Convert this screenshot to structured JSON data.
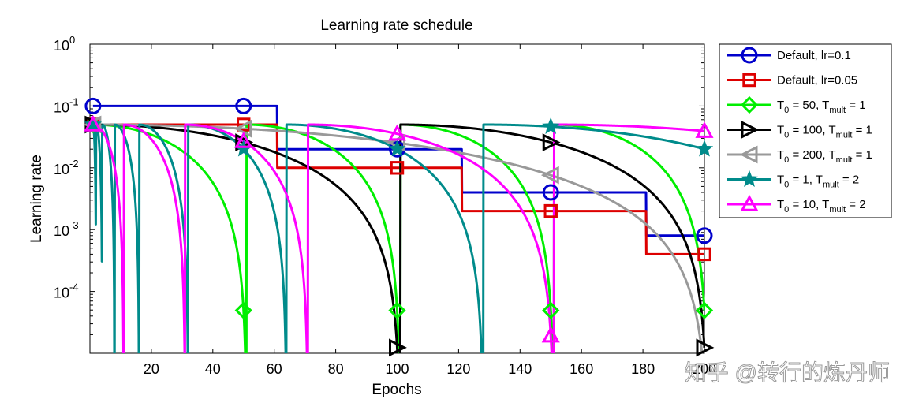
{
  "chart_data": {
    "type": "line",
    "title": "Learning rate schedule",
    "xlabel": "Epochs",
    "ylabel": "Learning rate",
    "xlim": [
      0,
      200
    ],
    "ylim": [
      1e-05,
      1
    ],
    "yscale": "log",
    "x_ticks": [
      20,
      40,
      60,
      80,
      100,
      120,
      140,
      160,
      180,
      200
    ],
    "y_ticks": [
      {
        "value": 1,
        "base": "10",
        "exp": "0"
      },
      {
        "value": 0.1,
        "base": "10",
        "exp": "-1"
      },
      {
        "value": 0.01,
        "base": "10",
        "exp": "-2"
      },
      {
        "value": 0.001,
        "base": "10",
        "exp": "-3"
      },
      {
        "value": 0.0001,
        "base": "10",
        "exp": "-4"
      }
    ],
    "grid": false,
    "legend_position": "outside-right",
    "series": [
      {
        "name": "Default, lr=0.1",
        "color": "#0000cc",
        "marker": "circle",
        "kind": "step",
        "lr": 0.1,
        "drop_every": 60,
        "factor": 0.2
      },
      {
        "name": "Default, lr=0.05",
        "color": "#dd0000",
        "marker": "square",
        "kind": "step",
        "lr": 0.05,
        "drop_every": 60,
        "factor": 0.2
      },
      {
        "name": "T_0 = 50, T_mult = 1",
        "color": "#00ee00",
        "marker": "diamond",
        "kind": "cosine",
        "lr": 0.05,
        "T0": 50,
        "Tmult": 1
      },
      {
        "name": "T_0 = 100, T_mult = 1",
        "color": "#000000",
        "marker": "triangle-right",
        "kind": "cosine",
        "lr": 0.05,
        "T0": 100,
        "Tmult": 1
      },
      {
        "name": "T_0 = 200, T_mult = 1",
        "color": "#999999",
        "marker": "triangle-left",
        "kind": "cosine",
        "lr": 0.05,
        "T0": 200,
        "Tmult": 1
      },
      {
        "name": "T_0 = 1, T_mult = 2",
        "color": "#008b8b",
        "marker": "star",
        "kind": "cosine",
        "lr": 0.05,
        "T0": 1,
        "Tmult": 2
      },
      {
        "name": "T_0 = 10, T_mult = 2",
        "color": "#ff00ff",
        "marker": "triangle-up",
        "kind": "cosine",
        "lr": 0.05,
        "T0": 10,
        "Tmult": 2
      }
    ],
    "legend_entries": [
      {
        "main": "Default, lr=0.1"
      },
      {
        "main": "Default, lr=0.05"
      },
      {
        "T0": "50",
        "Tmult": "1"
      },
      {
        "T0": "100",
        "Tmult": "1"
      },
      {
        "T0": "200",
        "Tmult": "1"
      },
      {
        "T0": "1",
        "Tmult": "2"
      },
      {
        "T0": "10",
        "Tmult": "2"
      }
    ],
    "markers_at_epochs": [
      1,
      50,
      100,
      150,
      200
    ]
  },
  "watermark": "知乎 @转行的炼丹师"
}
